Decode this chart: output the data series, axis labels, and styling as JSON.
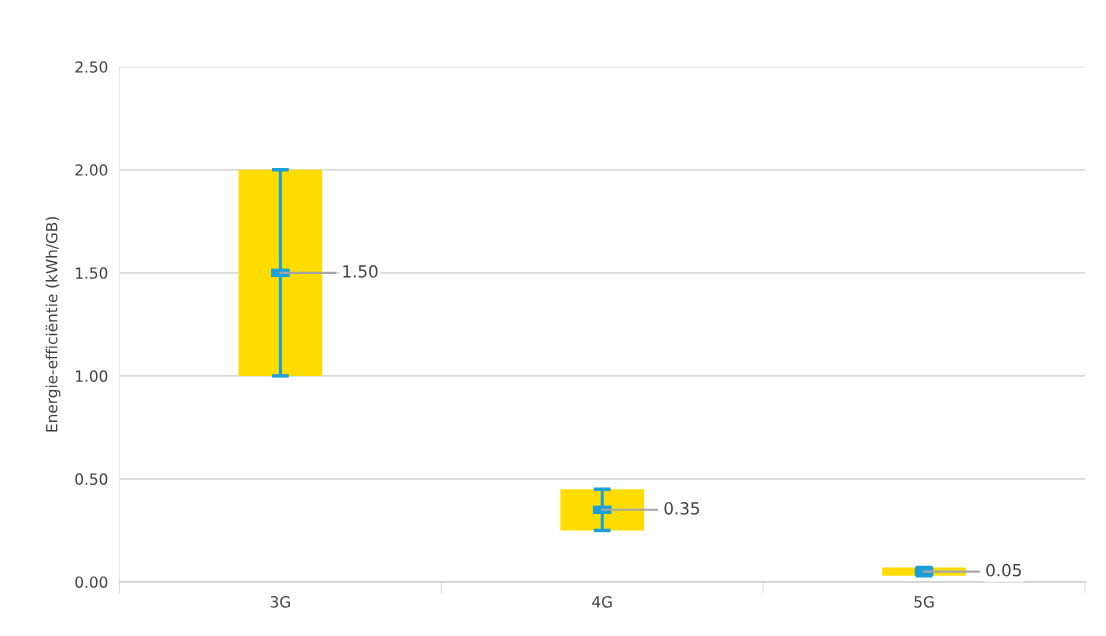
{
  "chart_data": {
    "type": "bar",
    "ylabel": "Energie-efficiëntie (kWh/GB)",
    "categories": [
      "3G",
      "4G",
      "5G"
    ],
    "series": [
      {
        "color": "#ffdc00",
        "base": [
          1.0,
          0.25,
          0.03
        ],
        "values": [
          1.0,
          0.2,
          0.04
        ]
      },
      {
        "type": "scatter",
        "color": "#1a9fd8",
        "marker": "square",
        "values": [
          1.5,
          0.35,
          0.05
        ],
        "errors": [
          [
            1.0,
            2.0
          ],
          [
            0.25,
            0.45
          ],
          [
            0.03,
            0.07
          ]
        ],
        "value_labels": [
          "1.50",
          "0.35",
          "0.05"
        ]
      }
    ],
    "ylim": [
      0,
      2.5
    ],
    "yticks": [
      {
        "value": 0,
        "label": "0.00"
      },
      {
        "value": 0.5,
        "label": "0.50"
      },
      {
        "value": 1.0,
        "label": "1.00"
      },
      {
        "value": 1.5,
        "label": "1.50"
      },
      {
        "value": 2.0,
        "label": "2.00"
      },
      {
        "value": 2.5,
        "label": "2.50"
      }
    ],
    "grid": "y",
    "legend": false
  }
}
